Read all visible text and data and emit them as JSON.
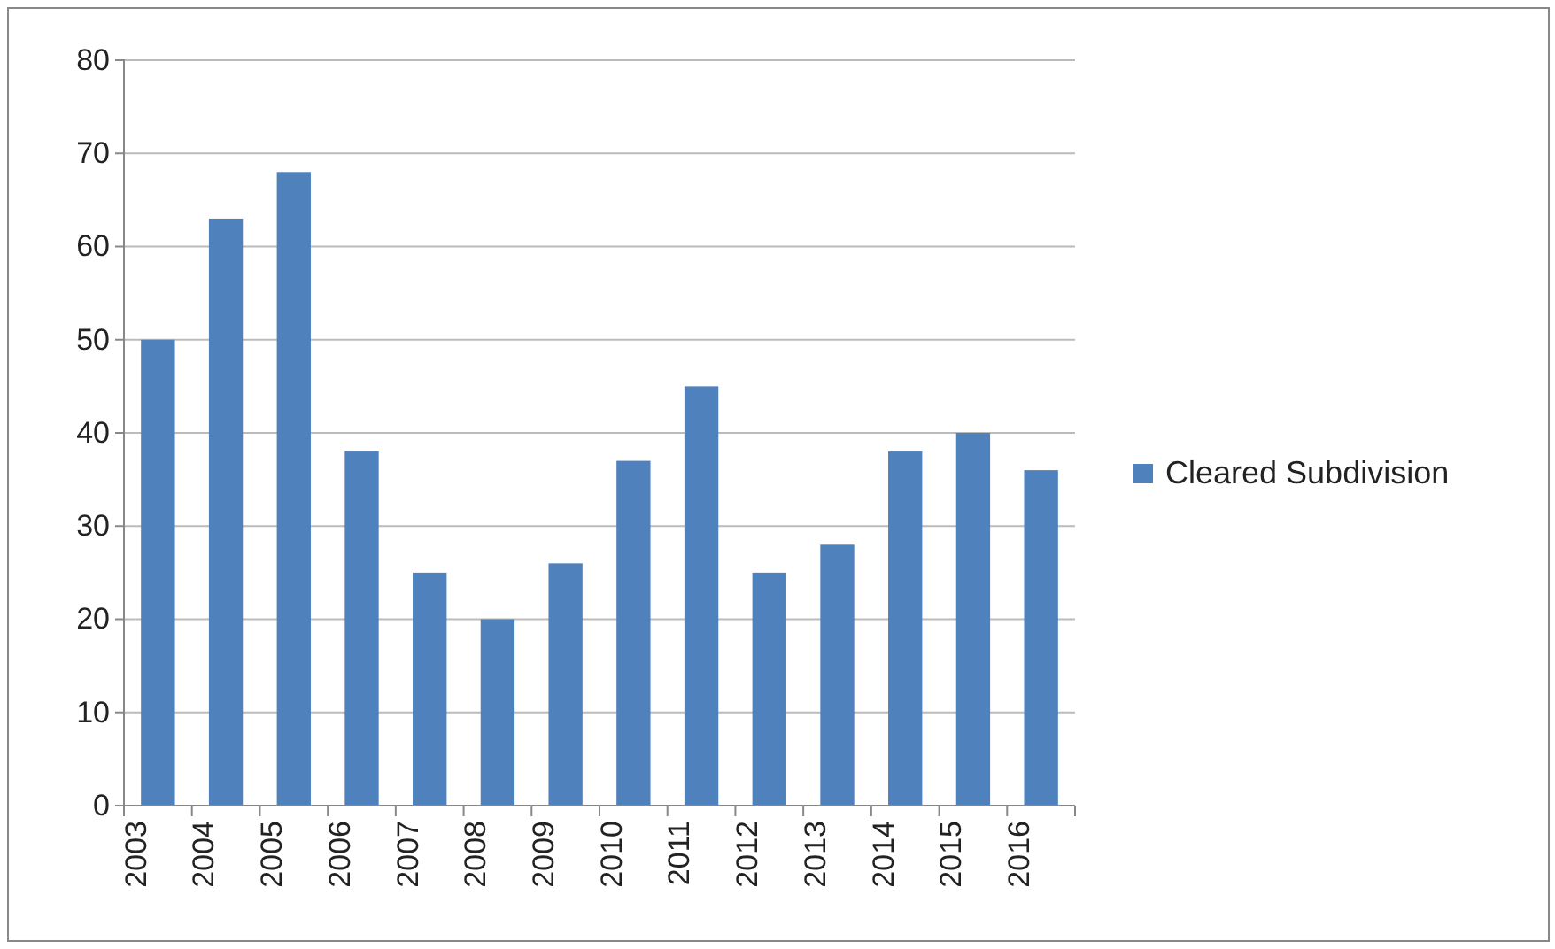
{
  "chart_data": {
    "type": "bar",
    "categories": [
      "2003",
      "2004",
      "2005",
      "2006",
      "2007",
      "2008",
      "2009",
      "2010",
      "2011",
      "2012",
      "2013",
      "2014",
      "2015",
      "2016"
    ],
    "series": [
      {
        "name": "Cleared Subdivision",
        "color": "#4f81bd",
        "values": [
          50,
          63,
          68,
          38,
          25,
          20,
          26,
          37,
          45,
          25,
          28,
          38,
          40,
          36
        ]
      }
    ],
    "ylim": [
      0,
      80
    ],
    "yticks": [
      0,
      10,
      20,
      30,
      40,
      50,
      60,
      70,
      80
    ],
    "grid": "y",
    "legend": "right"
  }
}
